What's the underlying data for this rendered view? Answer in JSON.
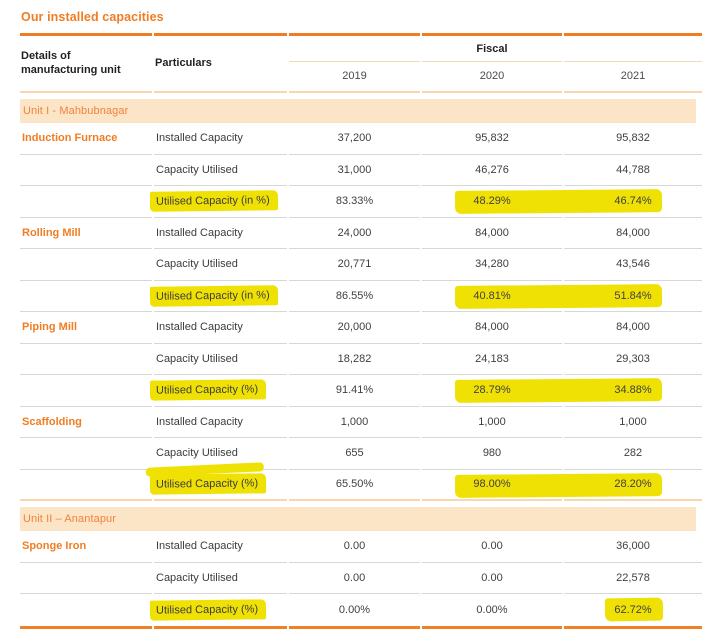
{
  "page": {
    "title": "Our installed capacities"
  },
  "colors": {
    "accent_orange": "#F07D23",
    "band_background": "#FCE4C6",
    "peach_rule": "#F8D7AF",
    "highlight_yellow": "#F0E105",
    "row_divider_gray": "#D7D7D7",
    "header_text": "#231F20",
    "body_text": "#3C3C3C"
  },
  "table": {
    "col1_header": "Details of manufacturing unit",
    "col2_header": "Particulars",
    "fiscal_header": "Fiscal",
    "years": [
      "2019",
      "2020",
      "2021"
    ],
    "sections": [
      {
        "label": "Unit I - Mahbubnagar",
        "units": [
          {
            "name": "Induction Furnace",
            "rows": [
              {
                "particular": "Installed Capacity",
                "values": [
                  "37,200",
                  "95,832",
                  "95,832"
                ],
                "hl_label": false,
                "hl_values": [
                  false,
                  false,
                  false
                ]
              },
              {
                "particular": "Capacity Utilised",
                "values": [
                  "31,000",
                  "46,276",
                  "44,788"
                ],
                "hl_label": false,
                "hl_values": [
                  false,
                  false,
                  false
                ]
              },
              {
                "particular": "Utilised Capacity (in %)",
                "values": [
                  "83.33%",
                  "48.29%",
                  "46.74%"
                ],
                "hl_label": true,
                "hl_values": [
                  false,
                  true,
                  true
                ]
              }
            ]
          },
          {
            "name": "Rolling Mill",
            "rows": [
              {
                "particular": "Installed Capacity",
                "values": [
                  "24,000",
                  "84,000",
                  "84,000"
                ],
                "hl_label": false,
                "hl_values": [
                  false,
                  false,
                  false
                ]
              },
              {
                "particular": "Capacity Utilised",
                "values": [
                  "20,771",
                  "34,280",
                  "43,546"
                ],
                "hl_label": false,
                "hl_values": [
                  false,
                  false,
                  false
                ]
              },
              {
                "particular": "Utilised Capacity (in %)",
                "values": [
                  "86.55%",
                  "40.81%",
                  "51.84%"
                ],
                "hl_label": true,
                "hl_values": [
                  false,
                  true,
                  true
                ]
              }
            ]
          },
          {
            "name": "Piping Mill",
            "rows": [
              {
                "particular": "Installed Capacity",
                "values": [
                  "20,000",
                  "84,000",
                  "84,000"
                ],
                "hl_label": false,
                "hl_values": [
                  false,
                  false,
                  false
                ]
              },
              {
                "particular": "Capacity Utilised",
                "values": [
                  "18,282",
                  "24,183",
                  "29,303"
                ],
                "hl_label": false,
                "hl_values": [
                  false,
                  false,
                  false
                ]
              },
              {
                "particular": "Utilised Capacity (%)",
                "values": [
                  "91.41%",
                  "28.79%",
                  "34.88%"
                ],
                "hl_label": true,
                "hl_values": [
                  false,
                  true,
                  true
                ]
              }
            ]
          },
          {
            "name": "Scaffolding",
            "rows": [
              {
                "particular": "Installed Capacity",
                "values": [
                  "1,000",
                  "1,000",
                  "1,000"
                ],
                "hl_label": false,
                "hl_values": [
                  false,
                  false,
                  false
                ]
              },
              {
                "particular": "Capacity Utilised",
                "values": [
                  "655",
                  "980",
                  "282"
                ],
                "hl_label": false,
                "hl_values": [
                  false,
                  false,
                  false
                ]
              },
              {
                "particular": "Utilised Capacity (%)",
                "values": [
                  "65.50%",
                  "98.00%",
                  "28.20%"
                ],
                "hl_label": true,
                "hl_double": true,
                "hl_values": [
                  false,
                  true,
                  true
                ]
              }
            ]
          }
        ]
      },
      {
        "label": "Unit II – Anantapur",
        "units": [
          {
            "name": "Sponge Iron",
            "rows": [
              {
                "particular": "Installed Capacity",
                "values": [
                  "0.00",
                  "0.00",
                  "36,000"
                ],
                "hl_label": false,
                "hl_values": [
                  false,
                  false,
                  false
                ]
              },
              {
                "particular": "Capacity Utilised",
                "values": [
                  "0.00",
                  "0.00",
                  "22,578"
                ],
                "hl_label": false,
                "hl_values": [
                  false,
                  false,
                  false
                ]
              },
              {
                "particular": "Utilised Capacity (%)",
                "values": [
                  "0.00%",
                  "0.00%",
                  "62.72%"
                ],
                "hl_label": true,
                "hl_values": [
                  false,
                  false,
                  true
                ]
              }
            ]
          }
        ]
      }
    ]
  }
}
